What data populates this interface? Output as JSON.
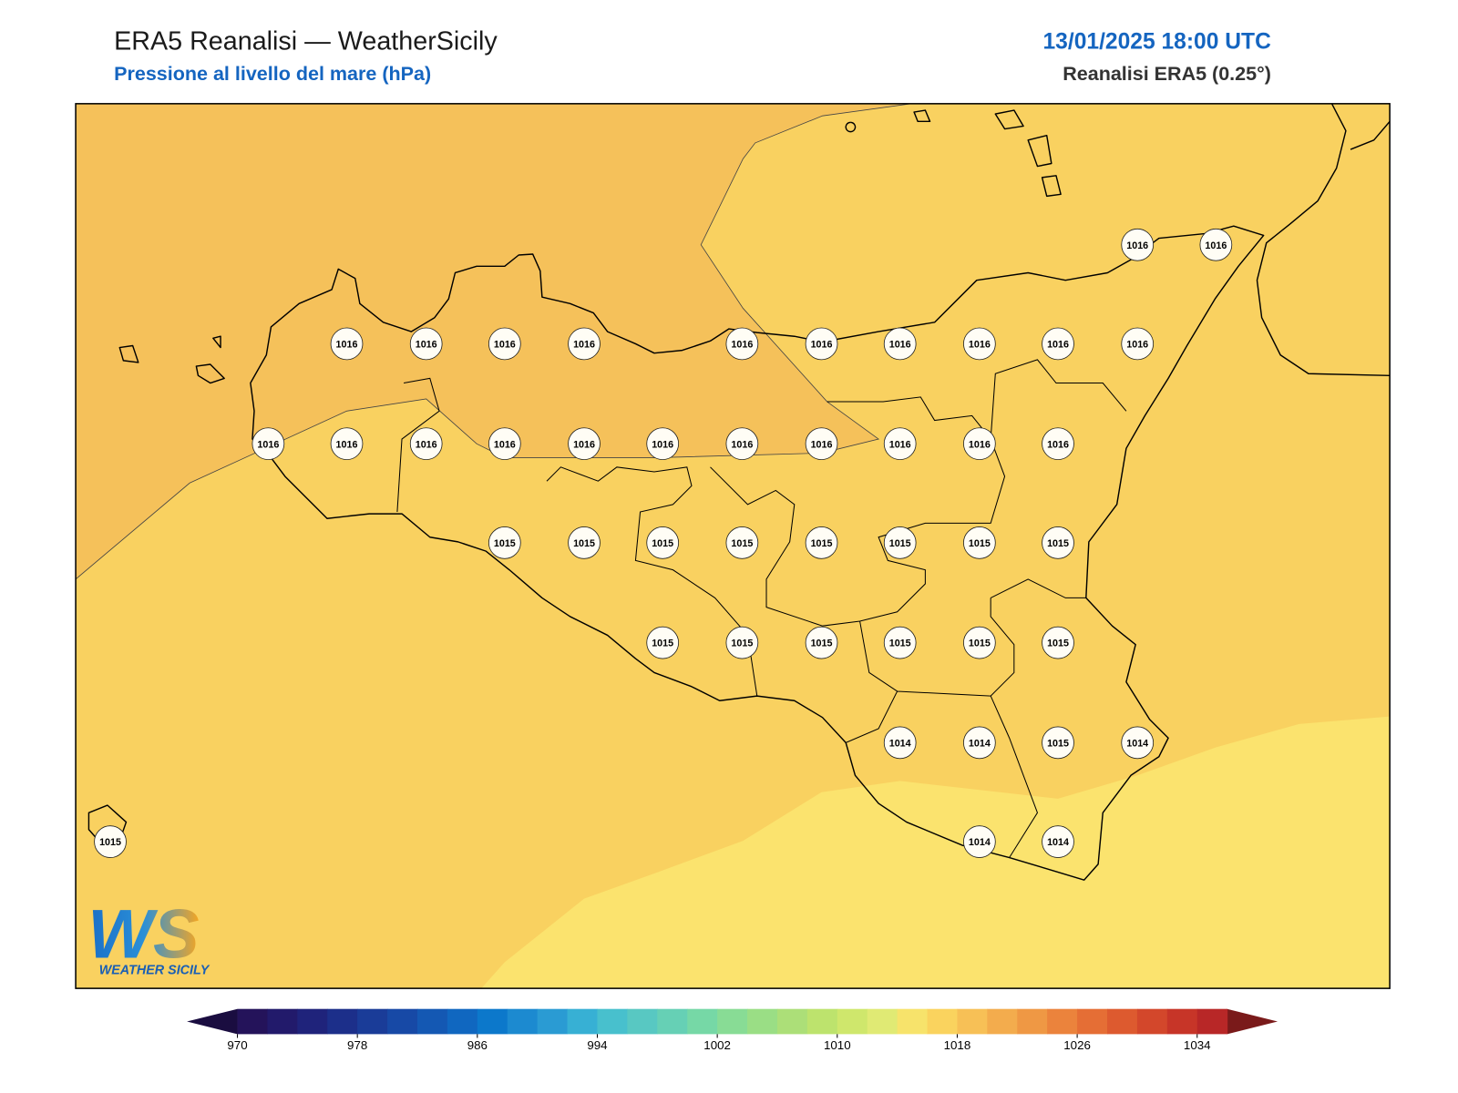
{
  "header": {
    "title": "ERA5 Reanalisi — WeatherSicily",
    "subtitle": "Pressione al livello del mare (hPa)",
    "datetime": "13/01/2025 18:00 UTC",
    "source": "Reanalisi ERA5 (0.25°)"
  },
  "map": {
    "stations": [
      1016,
      1016,
      1016,
      1016,
      1016,
      1016,
      1016,
      1016,
      1016,
      1016,
      1016,
      1016,
      1016,
      1016,
      1016,
      1016,
      1016,
      1016,
      1016,
      1016,
      1016,
      1016,
      1016,
      1015,
      1015,
      1015,
      1015,
      1015,
      1015,
      1015,
      1015,
      1015,
      1015,
      1015,
      1015,
      1015,
      1015,
      1014,
      1014,
      1015,
      1014,
      1015,
      1014,
      1014
    ]
  },
  "colorbar": {
    "levels": [
      970,
      972,
      974,
      976,
      978,
      980,
      982,
      984,
      986,
      988,
      990,
      992,
      994,
      996,
      998,
      1000,
      1002,
      1004,
      1006,
      1008,
      1010,
      1012,
      1014,
      1016,
      1018,
      1020,
      1022,
      1024,
      1026,
      1028,
      1030,
      1032,
      1034,
      1036
    ],
    "colors": [
      "#24135a",
      "#221a6b",
      "#1f237b",
      "#1c2f8a",
      "#1a3c98",
      "#1749a6",
      "#1458b3",
      "#1067c0",
      "#0c78cb",
      "#1c8ad0",
      "#2a9bd3",
      "#37b0d4",
      "#48c0cd",
      "#58c8c2",
      "#66d0b5",
      "#76d8a6",
      "#88dc95",
      "#9ade85",
      "#acdf78",
      "#bde36d",
      "#cfe76c",
      "#e0ea74",
      "#f7e36b",
      "#fad35e",
      "#f7c056",
      "#f3ac4d",
      "#ef9844",
      "#eb833c",
      "#e56e35",
      "#dd5a2f",
      "#d3472b",
      "#c73528",
      "#b82727"
    ],
    "under_color": "#1a0d40",
    "over_color": "#7a1a1a",
    "ticks": [
      970,
      978,
      986,
      994,
      1002,
      1010,
      1018,
      1026,
      1034
    ]
  },
  "logo": {
    "text": "WEATHER SICILY",
    "mark": "WS"
  }
}
